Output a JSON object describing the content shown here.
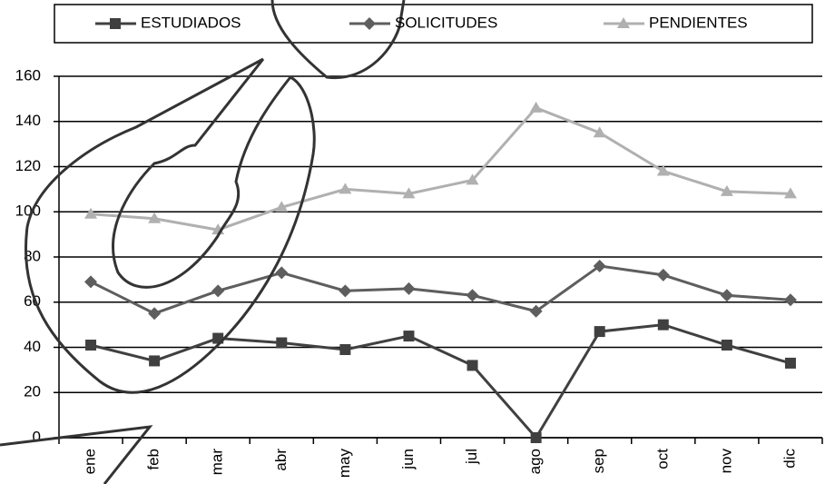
{
  "chart_data": {
    "type": "line",
    "categories": [
      "ene",
      "feb",
      "mar",
      "abr",
      "may",
      "jun",
      "jul",
      "ago",
      "sep",
      "oct",
      "nov",
      "dic"
    ],
    "series": [
      {
        "name": "ESTUDIADOS",
        "color": "#404040",
        "marker": "square",
        "values": [
          41,
          34,
          44,
          42,
          39,
          45,
          32,
          0,
          47,
          50,
          41,
          33
        ]
      },
      {
        "name": "SOLICITUDES",
        "color": "#5e5e5e",
        "marker": "diamond",
        "values": [
          69,
          55,
          65,
          73,
          65,
          66,
          63,
          56,
          76,
          72,
          63,
          61
        ]
      },
      {
        "name": "PENDIENTES",
        "color": "#b0b0b0",
        "marker": "triangle",
        "values": [
          99,
          97,
          92,
          102,
          110,
          108,
          114,
          146,
          135,
          118,
          109,
          108
        ]
      }
    ],
    "ylim": [
      0,
      160
    ],
    "yticks": [
      0,
      20,
      40,
      60,
      80,
      100,
      120,
      140,
      160
    ],
    "grid": true,
    "legend": "top"
  }
}
